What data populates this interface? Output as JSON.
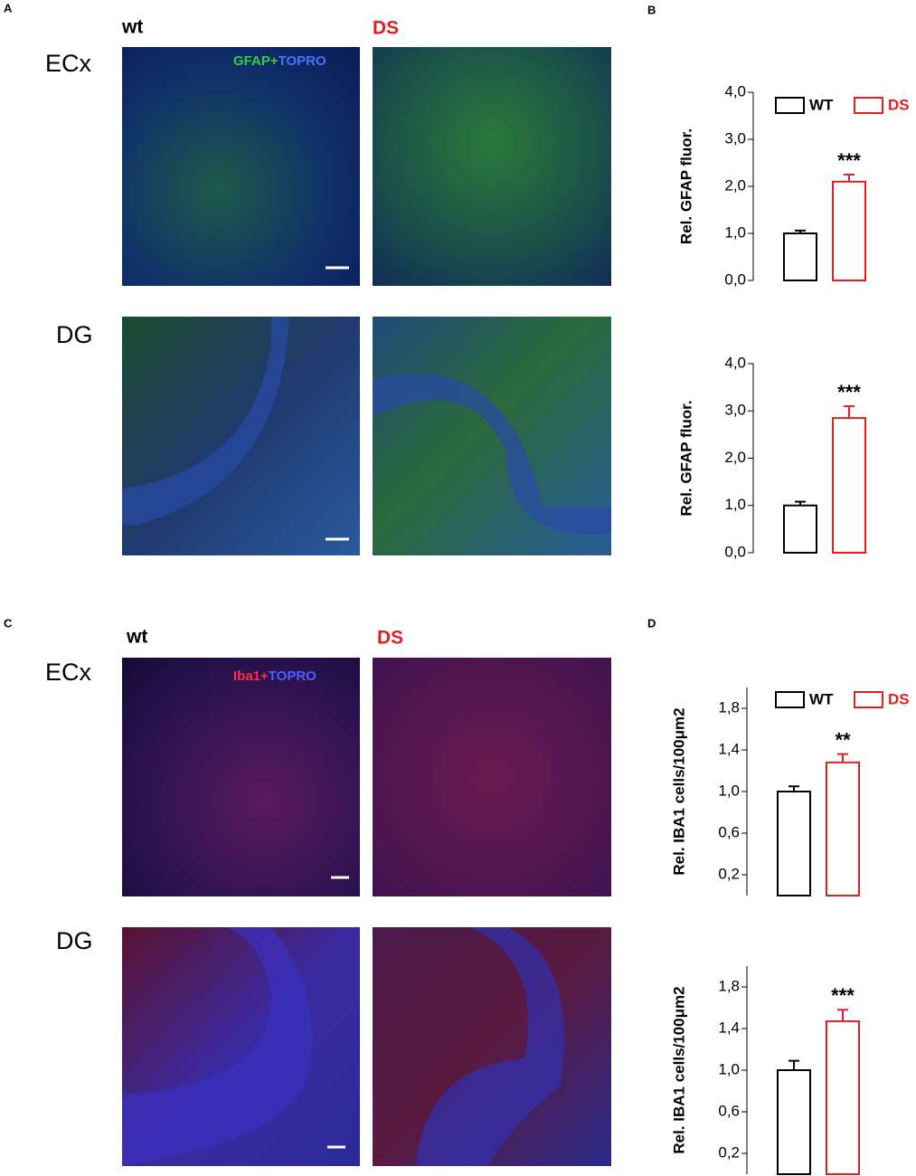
{
  "figure": {
    "panels": [
      {
        "label": "A",
        "columns": [
          "wt",
          "DS"
        ],
        "rows": [
          "ECx",
          "DG"
        ],
        "stain": [
          "GFAP+",
          "TOPRO"
        ]
      },
      {
        "label": "B"
      },
      {
        "label": "C",
        "columns": [
          "wt",
          "DS"
        ],
        "rows": [
          "ECx",
          "DG"
        ],
        "stain": [
          "Iba1+",
          "TOPRO"
        ]
      },
      {
        "label": "D"
      }
    ]
  },
  "chart_data": [
    {
      "type": "bar",
      "ylabel": "Rel. GFAP fluor.",
      "ylim": [
        0,
        4
      ],
      "yticks": [
        {
          "value": 0,
          "label": "0,0"
        },
        {
          "value": 1,
          "label": "1,0"
        },
        {
          "value": 2,
          "label": "2,0"
        },
        {
          "value": 3,
          "label": "3,0"
        },
        {
          "value": 4,
          "label": "4,0"
        }
      ],
      "series": [
        {
          "name": "WT",
          "color": "#000000",
          "values": [
            1.0
          ],
          "errors": [
            0.06
          ]
        },
        {
          "name": "DS",
          "color": "#e02020",
          "values": [
            2.1
          ],
          "errors": [
            0.15
          ],
          "labels": [
            "***"
          ]
        }
      ]
    },
    {
      "type": "bar",
      "ylabel": "Rel. GFAP fluor.",
      "ylim": [
        0,
        4
      ],
      "yticks": [
        {
          "value": 0,
          "label": "0,0"
        },
        {
          "value": 1,
          "label": "1,0"
        },
        {
          "value": 2,
          "label": "2,0"
        },
        {
          "value": 3,
          "label": "3,0"
        },
        {
          "value": 4,
          "label": "4,0"
        }
      ],
      "series": [
        {
          "color": "#000000",
          "values": [
            1.0
          ],
          "errors": [
            0.08
          ]
        },
        {
          "color": "#e02020",
          "values": [
            2.85
          ],
          "errors": [
            0.25
          ],
          "labels": [
            "***"
          ]
        }
      ]
    },
    {
      "type": "bar",
      "ylabel": "Rel. IBA1 cells/100μm2",
      "ylim": [
        0,
        2
      ],
      "yticks": [
        {
          "value": 0.2,
          "label": "0,2"
        },
        {
          "value": 0.6,
          "label": "0,6"
        },
        {
          "value": 1.0,
          "label": "1,0"
        },
        {
          "value": 1.4,
          "label": "1,4"
        },
        {
          "value": 1.8,
          "label": "1,8"
        }
      ],
      "series": [
        {
          "name": "WT",
          "color": "#000000",
          "values": [
            1.0
          ],
          "errors": [
            0.05
          ]
        },
        {
          "name": "DS",
          "color": "#e02020",
          "values": [
            1.28
          ],
          "errors": [
            0.08
          ],
          "labels": [
            "**"
          ]
        }
      ]
    },
    {
      "type": "bar",
      "ylabel": "Rel. IBA1 cells/100μm2",
      "ylim": [
        0,
        2
      ],
      "yticks": [
        {
          "value": 0.2,
          "label": "0,2"
        },
        {
          "value": 0.6,
          "label": "0,6"
        },
        {
          "value": 1.0,
          "label": "1,0"
        },
        {
          "value": 1.4,
          "label": "1,4"
        },
        {
          "value": 1.8,
          "label": "1,8"
        }
      ],
      "series": [
        {
          "color": "#000000",
          "values": [
            1.0
          ],
          "errors": [
            0.09
          ]
        },
        {
          "color": "#e02020",
          "values": [
            1.47
          ],
          "errors": [
            0.11
          ],
          "labels": [
            "***"
          ]
        }
      ]
    }
  ]
}
